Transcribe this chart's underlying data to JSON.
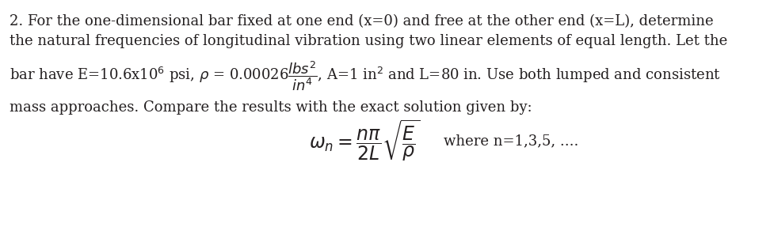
{
  "bg_color": "#ffffff",
  "text_color": "#231f20",
  "figsize": [
    9.77,
    3.01
  ],
  "dpi": 100,
  "line1": "2. For the one-dimensional bar fixed at one end (x=0) and free at the other end (x=L), determine",
  "line2": "the natural frequencies of longitudinal vibration using two linear elements of equal length. Let the",
  "line4": "mass approaches. Compare the results with the exact solution given by:",
  "formula": "$\\omega_n = \\dfrac{n\\pi}{2L}\\sqrt{\\dfrac{E}{\\rho}}$",
  "where_text": "where n=1,3,5, ....",
  "fontsize": 13.0,
  "fontsize_formula": 17
}
